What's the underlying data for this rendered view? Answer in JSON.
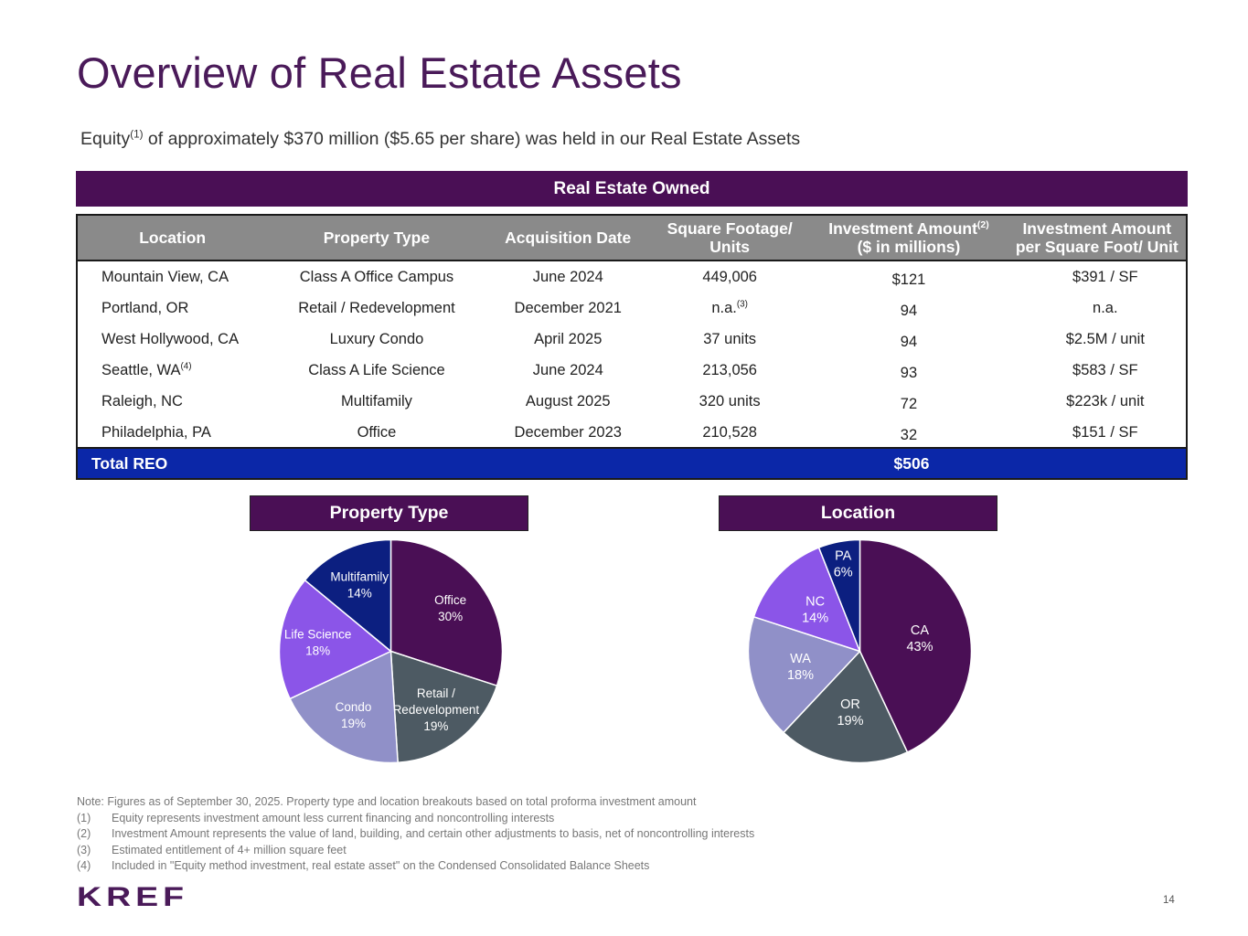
{
  "title": "Overview of Real Estate Assets",
  "subtitle": {
    "pre": "Equity",
    "sup": "(1)",
    "post": " of approximately $370 million ($5.65 per share) was held in our Real Estate Assets"
  },
  "banner": "Real Estate Owned",
  "table": {
    "headers": [
      {
        "line1": "Location",
        "line2": "",
        "sup": ""
      },
      {
        "line1": "Property Type",
        "line2": "",
        "sup": ""
      },
      {
        "line1": "Acquisition Date",
        "line2": "",
        "sup": ""
      },
      {
        "line1": "Square Footage/",
        "line2": "Units",
        "sup": ""
      },
      {
        "line1": "Investment Amount",
        "line2": "($ in millions)",
        "sup": "(2)"
      },
      {
        "line1": "Investment Amount",
        "line2": "per Square Foot/ Unit",
        "sup": ""
      }
    ],
    "rows": [
      {
        "location": "Mountain View, CA",
        "location_sup": "",
        "type": "Class A Office Campus",
        "date": "June 2024",
        "sqft": "449,006",
        "sqft_sup": "",
        "amount": "$121",
        "per": "$391 / SF"
      },
      {
        "location": "Portland, OR",
        "location_sup": "",
        "type": "Retail / Redevelopment",
        "date": "December 2021",
        "sqft": "n.a.",
        "sqft_sup": "(3)",
        "amount": "94",
        "per": "n.a."
      },
      {
        "location": "West Hollywood, CA",
        "location_sup": "",
        "type": "Luxury Condo",
        "date": "April 2025",
        "sqft": "37 units",
        "sqft_sup": "",
        "amount": "94",
        "per": "$2.5M / unit"
      },
      {
        "location": "Seattle, WA",
        "location_sup": "(4)",
        "type": "Class A Life Science",
        "date": "June 2024",
        "sqft": "213,056",
        "sqft_sup": "",
        "amount": "93",
        "per": "$583 / SF"
      },
      {
        "location": "Raleigh, NC",
        "location_sup": "",
        "type": "Multifamily",
        "date": "August 2025",
        "sqft": "320 units",
        "sqft_sup": "",
        "amount": "72",
        "per": "$223k  / unit"
      },
      {
        "location": "Philadelphia, PA",
        "location_sup": "",
        "type": "Office",
        "date": "December 2023",
        "sqft": "210,528",
        "sqft_sup": "",
        "amount": "32",
        "per": "$151 / SF"
      }
    ],
    "total_label": "Total REO",
    "total_value": "$506"
  },
  "chart_data": [
    {
      "type": "pie",
      "title": "Property Type",
      "slices": [
        {
          "label": "Office",
          "value": 30,
          "display": "30%",
          "color": "#4a0f55"
        },
        {
          "label": "Retail / Redevelopment",
          "value": 19,
          "display": "19%",
          "color": "#4d5a63"
        },
        {
          "label": "Condo",
          "value": 19,
          "display": "19%",
          "color": "#9090c8"
        },
        {
          "label": "Life Science",
          "value": 18,
          "display": "18%",
          "color": "#8b55e8"
        },
        {
          "label": "Multifamily",
          "value": 14,
          "display": "14%",
          "color": "#0c1f80"
        }
      ]
    },
    {
      "type": "pie",
      "title": "Location",
      "slices": [
        {
          "label": "CA",
          "value": 43,
          "display": "43%",
          "color": "#4a0f55"
        },
        {
          "label": "OR",
          "value": 19,
          "display": "19%",
          "color": "#4d5a63"
        },
        {
          "label": "WA",
          "value": 18,
          "display": "18%",
          "color": "#9090c8"
        },
        {
          "label": "NC",
          "value": 14,
          "display": "14%",
          "color": "#8b55e8"
        },
        {
          "label": "PA",
          "value": 6,
          "display": "6%",
          "color": "#0c1f80"
        }
      ]
    }
  ],
  "notes": {
    "intro": "Note: Figures as of September 30, 2025. Property type and location breakouts based on total proforma investment amount",
    "items": [
      {
        "num": "(1)",
        "text": "Equity represents investment amount less current financing and noncontrolling interests"
      },
      {
        "num": "(2)",
        "text": "Investment Amount represents the value of land, building, and certain other adjustments to basis, net of noncontrolling interests"
      },
      {
        "num": "(3)",
        "text": "Estimated entitlement of 4+ million square feet"
      },
      {
        "num": "(4)",
        "text": "Included in \"Equity method investment, real estate asset\" on the Condensed Consolidated Balance Sheets"
      }
    ]
  },
  "logo": "KREF",
  "page_number": "14"
}
